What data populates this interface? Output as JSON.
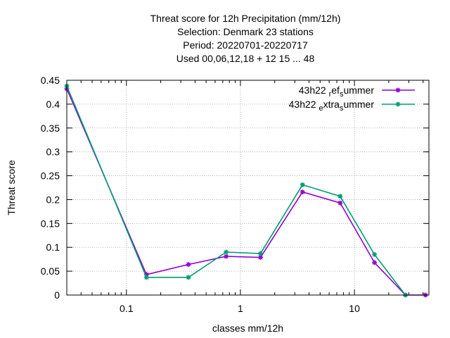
{
  "chart_data": {
    "type": "line",
    "title_lines": [
      "Threat score  for 12h Precipitation (mm/12h)",
      "Selection: Denmark     23 stations",
      "Period: 20220701-20220717",
      "Used  00,06,12,18  + 12 15 ... 48"
    ],
    "xlabel": "classes mm/12h",
    "ylabel": "Threat score",
    "x_scale": "log",
    "xlim": [
      0.03,
      45
    ],
    "ylim": [
      0,
      0.45
    ],
    "x_ticks": [
      0.1,
      1,
      10
    ],
    "x_tick_labels": [
      "0.1",
      "1",
      "10"
    ],
    "y_ticks": [
      0,
      0.05,
      0.1,
      0.15,
      0.2,
      0.25,
      0.3,
      0.35,
      0.4,
      0.45
    ],
    "y_tick_labels": [
      "0",
      "0.05",
      "0.1",
      "0.15",
      "0.2",
      "0.25",
      "0.3",
      "0.35",
      "0.4",
      "0.45"
    ],
    "grid": true,
    "legend_position": "top-right",
    "series": [
      {
        "name": "43h22 _ref_summer",
        "legend_parts": [
          [
            "43h22 ",
            "n"
          ],
          [
            "r",
            "sub"
          ],
          [
            "ef",
            "n"
          ],
          [
            "s",
            "sub"
          ],
          [
            "ummer",
            "n"
          ]
        ],
        "color": "#9400d3",
        "x": [
          0.03,
          0.15,
          0.35,
          0.75,
          1.5,
          3.5,
          7.5,
          15,
          28,
          42
        ],
        "y": [
          0.432,
          0.043,
          0.064,
          0.081,
          0.079,
          0.216,
          0.193,
          0.068,
          0.0,
          0.0
        ]
      },
      {
        "name": "43h22 _extra_summer",
        "legend_parts": [
          [
            "43h22 ",
            "n"
          ],
          [
            "e",
            "sub"
          ],
          [
            "xtra",
            "n"
          ],
          [
            "s",
            "sub"
          ],
          [
            "ummer",
            "n"
          ]
        ],
        "color": "#009e73",
        "x": [
          0.03,
          0.15,
          0.35,
          0.75,
          1.5,
          3.5,
          7.5,
          15,
          28
        ],
        "y": [
          0.438,
          0.037,
          0.037,
          0.09,
          0.087,
          0.231,
          0.207,
          0.085,
          0.0
        ]
      }
    ]
  }
}
